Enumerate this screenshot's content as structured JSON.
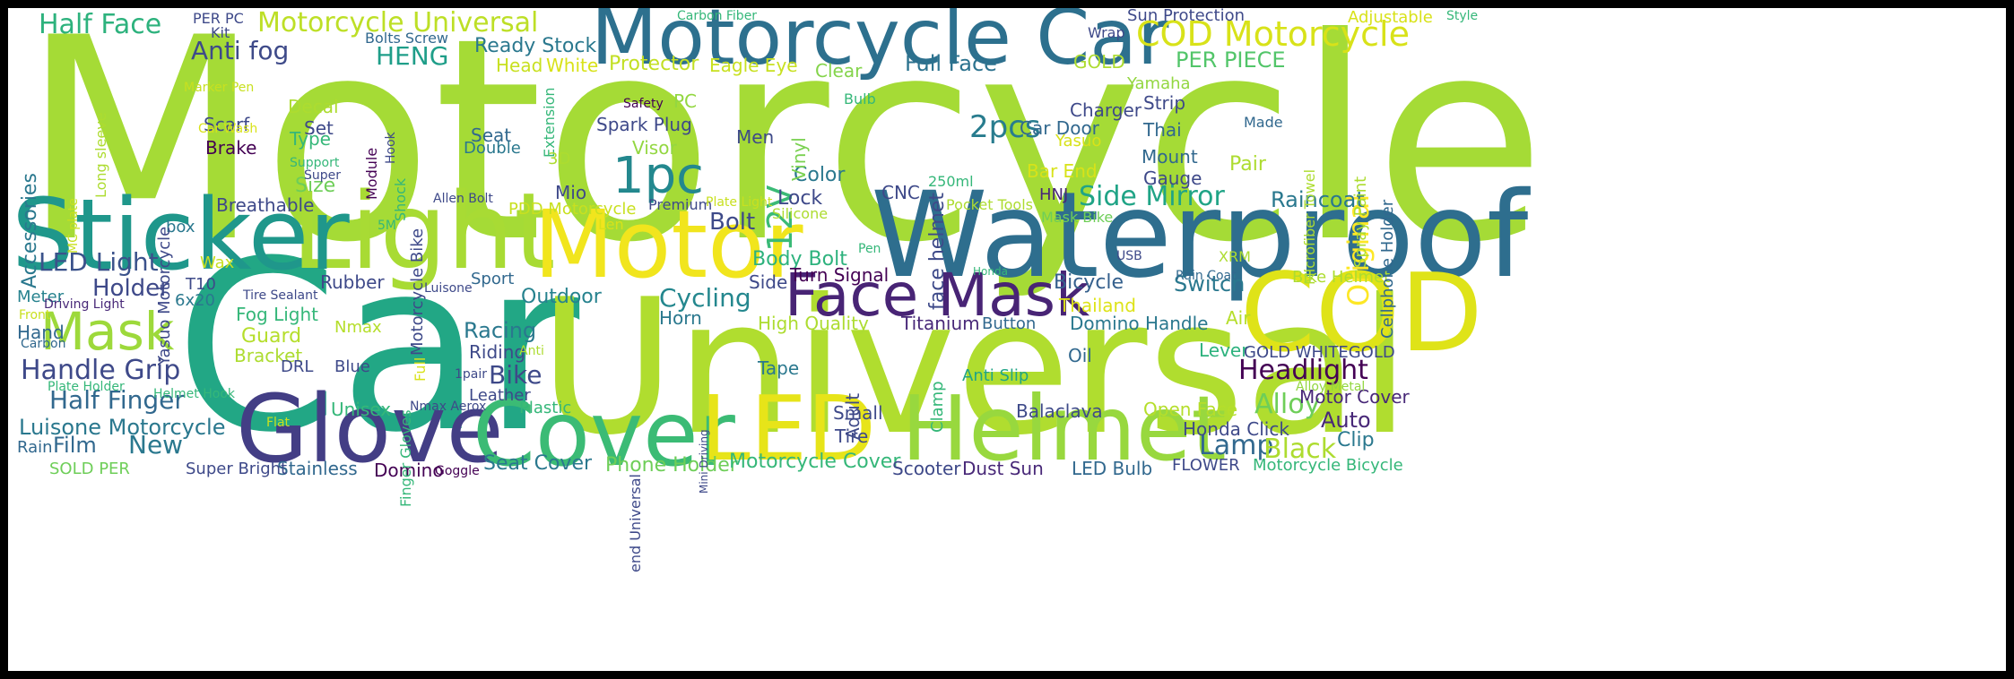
{
  "colors": {
    "background": "#ffffff",
    "frame": "#000000",
    "palette": [
      "#440154",
      "#482878",
      "#3e4989",
      "#31688e",
      "#26828e",
      "#1f9e89",
      "#35b779",
      "#6ece58",
      "#b5de2b",
      "#fde725"
    ]
  },
  "words": [
    {
      "text": "Motorcycle",
      "color": "#a5db36"
    },
    {
      "text": "Car",
      "color": "#22a785"
    },
    {
      "text": "Universal",
      "color": "#b0dd2f"
    },
    {
      "text": "Waterproof",
      "color": "#2e6e8e"
    },
    {
      "text": "Motorcycle Car",
      "color": "#2d708e"
    },
    {
      "text": "Light",
      "color": "#a8db34"
    },
    {
      "text": "Sticker",
      "color": "#1f978b"
    },
    {
      "text": "Motor",
      "color": "#f1e51d"
    },
    {
      "text": "COD",
      "color": "#dfe318"
    },
    {
      "text": "Glove",
      "color": "#433e85"
    },
    {
      "text": "Cover",
      "color": "#3bbb75"
    },
    {
      "text": "LED",
      "color": "#e7e419"
    },
    {
      "text": "Helmet",
      "color": "#98d83e"
    },
    {
      "text": "Face Mask",
      "color": "#482475"
    },
    {
      "text": "Mask",
      "color": "#9dd93b"
    },
    {
      "text": "1pc",
      "color": "#23888e"
    },
    {
      "text": "COD Motorcycle",
      "color": "#d8e219"
    },
    {
      "text": "Half Face",
      "color": "#2db27d"
    },
    {
      "text": "Motorcycle Universal",
      "color": "#bddf26"
    },
    {
      "text": "Anti fog",
      "color": "#3e4a89"
    },
    {
      "text": "HENG",
      "color": "#1f9e89"
    },
    {
      "text": "LED Light",
      "color": "#3b528b"
    },
    {
      "text": "Handle Grip",
      "color": "#3e4989"
    },
    {
      "text": "Half Finger",
      "color": "#31688e"
    },
    {
      "text": "Luisone Motorcycle",
      "color": "#2a788e"
    },
    {
      "text": "Headlight",
      "color": "#440154"
    },
    {
      "text": "Side Mirror",
      "color": "#20a486"
    },
    {
      "text": "Original",
      "color": "#fde725"
    },
    {
      "text": "2pcs",
      "color": "#287c8e"
    },
    {
      "text": "12V",
      "color": "#3aba76"
    },
    {
      "text": "Full Face",
      "color": "#2c728e"
    },
    {
      "text": "PER PIECE",
      "color": "#52c569"
    },
    {
      "text": "Bolt",
      "color": "#3e4a89"
    },
    {
      "text": "Holder",
      "color": "#3e4989"
    },
    {
      "text": "Cycling",
      "color": "#24878e"
    },
    {
      "text": "Outdoor",
      "color": "#26828e"
    },
    {
      "text": "Racing",
      "color": "#2a788e"
    },
    {
      "text": "Bike",
      "color": "#3e4989"
    },
    {
      "text": "Alloy",
      "color": "#6ece58"
    },
    {
      "text": "Lamp",
      "color": "#31688e"
    },
    {
      "text": "Black",
      "color": "#addc30"
    },
    {
      "text": "Auto",
      "color": "#482878"
    },
    {
      "text": "New",
      "color": "#2a788e"
    },
    {
      "text": "Film",
      "color": "#31688e"
    },
    {
      "text": "Raincoat",
      "color": "#2a788e"
    },
    {
      "text": "Switch",
      "color": "#2a788e"
    },
    {
      "text": "Bicycle",
      "color": "#35608d"
    },
    {
      "text": "Thailand",
      "color": "#dde318"
    },
    {
      "text": "Ready Stock",
      "color": "#2a788e"
    },
    {
      "text": "Head",
      "color": "#c8e020"
    },
    {
      "text": "White",
      "color": "#d8e219"
    },
    {
      "text": "Protector",
      "color": "#c2df23"
    },
    {
      "text": "Eagle Eye",
      "color": "#c8e020"
    },
    {
      "text": "Clear",
      "color": "#84d44b"
    },
    {
      "text": "Spark Plug",
      "color": "#3e4989"
    },
    {
      "text": "Visor",
      "color": "#93d741"
    },
    {
      "text": "Men",
      "color": "#3e4a89"
    },
    {
      "text": "Color",
      "color": "#2a788e"
    },
    {
      "text": "Lock",
      "color": "#3e4989"
    },
    {
      "text": "CNC",
      "color": "#3e4989"
    },
    {
      "text": "face helmet",
      "color": "#3e4a89"
    },
    {
      "text": "Vinyl",
      "color": "#7ad151"
    },
    {
      "text": "Body Bolt",
      "color": "#2db27d"
    },
    {
      "text": "Turn Signal",
      "color": "#440154"
    },
    {
      "text": "Side",
      "color": "#3e4989"
    },
    {
      "text": "Horn",
      "color": "#2a788e"
    },
    {
      "text": "High Quality",
      "color": "#addc30"
    },
    {
      "text": "Titanium",
      "color": "#482878"
    },
    {
      "text": "Button",
      "color": "#31688e"
    },
    {
      "text": "Domino Handle",
      "color": "#2a788e"
    },
    {
      "text": "Air",
      "color": "#b5de2b"
    },
    {
      "text": "Lever",
      "color": "#2db27d"
    },
    {
      "text": "GOLD WHITEGOLD",
      "color": "#3e4989"
    },
    {
      "text": "Oil",
      "color": "#31688e"
    },
    {
      "text": "Anti Slip",
      "color": "#20a486"
    },
    {
      "text": "Clamp",
      "color": "#35b779"
    },
    {
      "text": "Adult",
      "color": "#3e4989"
    },
    {
      "text": "Tape",
      "color": "#2a788e"
    },
    {
      "text": "Small",
      "color": "#3e4989"
    },
    {
      "text": "Tire",
      "color": "#3e4989"
    },
    {
      "text": "Balaclava",
      "color": "#3e4a89"
    },
    {
      "text": "Open Face",
      "color": "#b5de2b"
    },
    {
      "text": "Honda Click",
      "color": "#3e4989"
    },
    {
      "text": "Motor Cover",
      "color": "#482878"
    },
    {
      "text": "Alloy Metal",
      "color": "#93d741"
    },
    {
      "text": "Clip",
      "color": "#2a788e"
    },
    {
      "text": "FLOWER",
      "color": "#3e4989"
    },
    {
      "text": "Motorcycle Bicycle",
      "color": "#35b779"
    },
    {
      "text": "Seat Cover",
      "color": "#2a788e"
    },
    {
      "text": "Phone Holder",
      "color": "#6ece58"
    },
    {
      "text": "Motorcycle Cover",
      "color": "#35b779"
    },
    {
      "text": "Scooter",
      "color": "#3e4989"
    },
    {
      "text": "Dust Sun",
      "color": "#482878"
    },
    {
      "text": "LED Bulb",
      "color": "#31688e"
    },
    {
      "text": "Stainless",
      "color": "#31688e"
    },
    {
      "text": "Domino",
      "color": "#440154"
    },
    {
      "text": "Goggle",
      "color": "#440154"
    },
    {
      "text": "Super Bright",
      "color": "#3e4989"
    },
    {
      "text": "SOLD PER",
      "color": "#6ece58"
    },
    {
      "text": "Rain",
      "color": "#31688e"
    },
    {
      "text": "Flat",
      "color": "#c8e020"
    },
    {
      "text": "Helmet Hook",
      "color": "#35b779"
    },
    {
      "text": "Plate Holder",
      "color": "#35b779"
    },
    {
      "text": "Carbon",
      "color": "#31688e"
    },
    {
      "text": "Hand",
      "color": "#31688e"
    },
    {
      "text": "Front",
      "color": "#c8e020"
    },
    {
      "text": "Meter",
      "color": "#26828e"
    },
    {
      "text": "Driving Light",
      "color": "#482878"
    },
    {
      "text": "6x20",
      "color": "#2a788e"
    },
    {
      "text": "T10",
      "color": "#3e4a89"
    },
    {
      "text": "Tire Sealant",
      "color": "#3e4989"
    },
    {
      "text": "Fog Light",
      "color": "#35b779"
    },
    {
      "text": "Guard",
      "color": "#b5de2b"
    },
    {
      "text": "Bracket",
      "color": "#addc30"
    },
    {
      "text": "DRL",
      "color": "#3e4989"
    },
    {
      "text": "Blue",
      "color": "#3e4989"
    },
    {
      "text": "Nmax",
      "color": "#b5de2b"
    },
    {
      "text": "Rubber",
      "color": "#3e4989"
    },
    {
      "text": "Wax",
      "color": "#c8e020"
    },
    {
      "text": "box",
      "color": "#2a788e"
    },
    {
      "text": "5M",
      "color": "#35b779"
    },
    {
      "text": "Breathable",
      "color": "#3e4989"
    },
    {
      "text": "Size",
      "color": "#6ece58"
    },
    {
      "text": "Support",
      "color": "#35b779"
    },
    {
      "text": "Super",
      "color": "#3e4989"
    },
    {
      "text": "Brake",
      "color": "#440154"
    },
    {
      "text": "Type",
      "color": "#35b779"
    },
    {
      "text": "Scarf",
      "color": "#3e4989"
    },
    {
      "text": "Car Wash",
      "color": "#d8e219"
    },
    {
      "text": "Set",
      "color": "#3e4989"
    },
    {
      "text": "Decal",
      "color": "#addc30"
    },
    {
      "text": "Marker Pen",
      "color": "#c8e020"
    },
    {
      "text": "Kit",
      "color": "#3e4989"
    },
    {
      "text": "PER PC",
      "color": "#3e4989"
    },
    {
      "text": "Bolts Screw",
      "color": "#31688e"
    },
    {
      "text": "Carbon Fiber",
      "color": "#35b779"
    },
    {
      "text": "Wrap",
      "color": "#3e4989"
    },
    {
      "text": "Sun Protection",
      "color": "#3e4989"
    },
    {
      "text": "Adjustable",
      "color": "#d8e219"
    },
    {
      "text": "Style",
      "color": "#35b779"
    },
    {
      "text": "GOLD",
      "color": "#addc30"
    },
    {
      "text": "Yamaha",
      "color": "#93d741"
    },
    {
      "text": "Charger",
      "color": "#3e4989"
    },
    {
      "text": "Strip",
      "color": "#3e4989"
    },
    {
      "text": "Thai",
      "color": "#31688e"
    },
    {
      "text": "Made",
      "color": "#31688e"
    },
    {
      "text": "Car Door",
      "color": "#31688e"
    },
    {
      "text": "Yasuo",
      "color": "#d8e219"
    },
    {
      "text": "Bar End",
      "color": "#d8e219"
    },
    {
      "text": "Mount",
      "color": "#31688e"
    },
    {
      "text": "Pair",
      "color": "#addc30"
    },
    {
      "text": "Gauge",
      "color": "#3e4989"
    },
    {
      "text": "HNJ",
      "color": "#482878"
    },
    {
      "text": "250ml",
      "color": "#35b779"
    },
    {
      "text": "Pocket Tools",
      "color": "#addc30"
    },
    {
      "text": "Mask Bike",
      "color": "#6ece58"
    },
    {
      "text": "XRM",
      "color": "#addc30"
    },
    {
      "text": "USB",
      "color": "#3e4989"
    },
    {
      "text": "Honda",
      "color": "#35b779"
    },
    {
      "text": "Rain Coat",
      "color": "#31688e"
    },
    {
      "text": "Bike Helmet",
      "color": "#addc30"
    },
    {
      "text": "Bulb",
      "color": "#35b779"
    },
    {
      "text": "Safety",
      "color": "#440154"
    },
    {
      "text": "PC",
      "color": "#93d741"
    },
    {
      "text": "Extension",
      "color": "#35b779"
    },
    {
      "text": "Seat",
      "color": "#31688e"
    },
    {
      "text": "Double",
      "color": "#2a788e"
    },
    {
      "text": "3D",
      "color": "#addc30"
    },
    {
      "text": "Mio",
      "color": "#3e4989"
    },
    {
      "text": "PDD Motorcycle",
      "color": "#c8e020"
    },
    {
      "text": "Premium",
      "color": "#3e4989"
    },
    {
      "text": "Plate Light",
      "color": "#c8e020"
    },
    {
      "text": "Silicone",
      "color": "#addc30"
    },
    {
      "text": "Len",
      "color": "#d8e219"
    },
    {
      "text": "Sport",
      "color": "#31688e"
    },
    {
      "text": "Luisone",
      "color": "#3e4989"
    },
    {
      "text": "Riding",
      "color": "#3e4989"
    },
    {
      "text": "Anti",
      "color": "#addc30"
    },
    {
      "text": "1pair",
      "color": "#3e4989"
    },
    {
      "text": "Leather",
      "color": "#3e4989"
    },
    {
      "text": "Plastic",
      "color": "#35b779"
    },
    {
      "text": "Unisex",
      "color": "#35b779"
    },
    {
      "text": "Nmax Aerox",
      "color": "#3e4989"
    },
    {
      "text": "Allen Bolt",
      "color": "#3e4989"
    },
    {
      "text": "Cellphone Holder",
      "color": "#31688e"
    },
    {
      "text": "Spray Paint",
      "color": "#addc30"
    },
    {
      "text": "Microfiber Towel",
      "color": "#addc30"
    },
    {
      "text": "Accessories",
      "color": "#2a788e"
    },
    {
      "text": "Long sleeve",
      "color": "#addc30"
    },
    {
      "text": "Yasuo Motorcycle",
      "color": "#3e4989"
    },
    {
      "text": "MC plate",
      "color": "#c8e020"
    },
    {
      "text": "Motorcycle Bike",
      "color": "#3e4989"
    },
    {
      "text": "Module",
      "color": "#440154"
    },
    {
      "text": "Hook",
      "color": "#3e4989"
    },
    {
      "text": "Shock",
      "color": "#35b779"
    },
    {
      "text": "Finger Gloves",
      "color": "#35b779"
    },
    {
      "text": "Full",
      "color": "#d8e219"
    },
    {
      "text": "end Universal",
      "color": "#3e4989"
    },
    {
      "text": "Mini Driving",
      "color": "#3e4989"
    },
    {
      "text": "Pen",
      "color": "#35b779"
    }
  ]
}
